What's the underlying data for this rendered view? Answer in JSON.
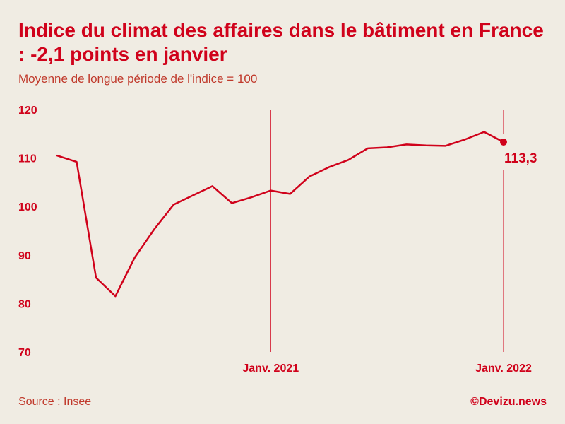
{
  "title": "Indice du climat des affaires dans le bâtiment en France : -2,1 points en janvier",
  "subtitle": "Moyenne de longue période de l'indice = 100",
  "source": "Source : Insee",
  "credit": "©Devizu.news",
  "colors": {
    "accent": "#d0021b",
    "background": "#f0ece3"
  },
  "chart_data": {
    "type": "line",
    "x": [
      "2020-02",
      "2020-03",
      "2020-04",
      "2020-05",
      "2020-06",
      "2020-07",
      "2020-08",
      "2020-09",
      "2020-10",
      "2020-11",
      "2020-12",
      "2021-01",
      "2021-02",
      "2021-03",
      "2021-04",
      "2021-05",
      "2021-06",
      "2021-07",
      "2021-08",
      "2021-09",
      "2021-10",
      "2021-11",
      "2021-12",
      "2022-01"
    ],
    "series": [
      {
        "values": [
          110.5,
          109.2,
          85.3,
          81.5,
          89.5,
          95.3,
          100.4,
          102.3,
          104.2,
          100.7,
          101.9,
          103.3,
          102.6,
          106.2,
          108.1,
          109.6,
          112.0,
          112.2,
          112.8,
          112.6,
          112.5,
          113.8,
          115.4,
          113.3
        ]
      }
    ],
    "ylim": [
      70,
      120
    ],
    "yticks": [
      120,
      110,
      100,
      90,
      80,
      70
    ],
    "ytick_labels": [
      "120",
      "110",
      "100",
      "90",
      "80",
      "70"
    ],
    "markers": [
      {
        "x": "2021-01",
        "label": "Janv. 2021"
      },
      {
        "x": "2022-01",
        "label": "Janv. 2022"
      }
    ],
    "last_value_label": "113,3",
    "grid": false
  }
}
